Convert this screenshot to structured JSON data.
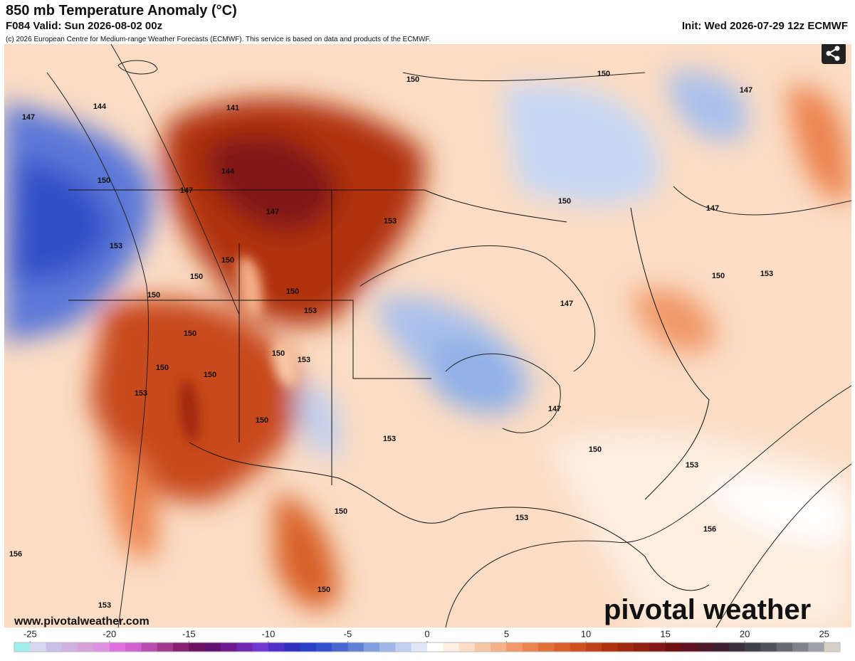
{
  "header": {
    "title": "850 mb Temperature Anomaly (°C)",
    "valid": "F084 Valid: Sun 2026-08-02 00z",
    "init": "Init: Wed 2026-07-29 12z ECMWF",
    "copyright": "(c) 2026 European Centre for Medium-range Weather Forecasts (ECMWF). This service is based on data and products of the ECMWF."
  },
  "map": {
    "contour_labels": [
      "147",
      "144",
      "141",
      "150",
      "147",
      "144",
      "147",
      "150",
      "150",
      "147",
      "150",
      "153",
      "153",
      "150",
      "150",
      "150",
      "150",
      "153",
      "147",
      "150",
      "153",
      "147",
      "150",
      "150",
      "150",
      "150",
      "153",
      "153",
      "150",
      "153",
      "147",
      "150",
      "153",
      "150",
      "153",
      "156",
      "156",
      "150",
      "153"
    ]
  },
  "footer": {
    "website": "www.pivotalweather.com",
    "logo": "pivotal weather"
  },
  "colorbar": {
    "range": [
      -26,
      26
    ],
    "ticks": [
      -25,
      -20,
      -15,
      -10,
      -5,
      0,
      5,
      10,
      15,
      20,
      25
    ],
    "colors": [
      "#a0f0f0",
      "#d8d8f0",
      "#c8c0e8",
      "#d0b0e0",
      "#d8a0d8",
      "#e090e0",
      "#e070e0",
      "#d060d0",
      "#b84cb0",
      "#a03890",
      "#882070",
      "#701060",
      "#601070",
      "#701890",
      "#7028b0",
      "#7038d0",
      "#5030c8",
      "#3030c0",
      "#2840c8",
      "#3050d0",
      "#4868d0",
      "#6080d8",
      "#80a0e0",
      "#a0b8e8",
      "#c0d0f0",
      "#e0e8f8",
      "#ffffff",
      "#fdeee0",
      "#fbdcc4",
      "#f8c8a4",
      "#f4b088",
      "#f09868",
      "#ec8450",
      "#e07038",
      "#d86028",
      "#d05020",
      "#c04018",
      "#b03010",
      "#a02810",
      "#902010",
      "#801818",
      "#701010",
      "#601020",
      "#501828",
      "#402030",
      "#383038",
      "#404048",
      "#505058",
      "#686870",
      "#808088",
      "#a0a0a8",
      "#d8d0c8"
    ]
  }
}
